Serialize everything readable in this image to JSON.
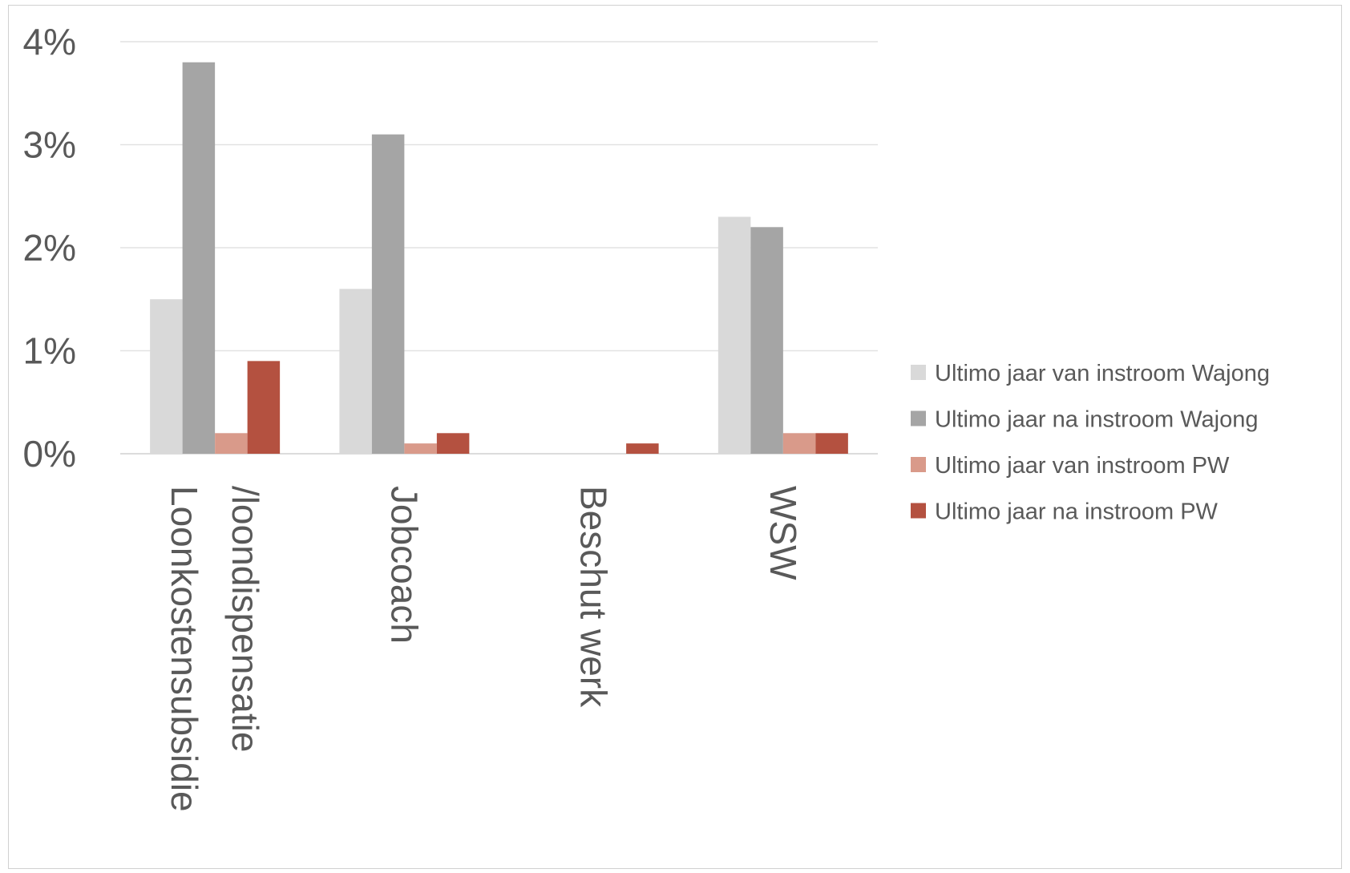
{
  "chart_data": {
    "type": "bar",
    "title": "",
    "xlabel": "",
    "ylabel": "",
    "ylim": [
      0,
      4
    ],
    "yticks": [
      "0%",
      "1%",
      "2%",
      "3%",
      "4%"
    ],
    "grid": true,
    "legend_position": "right",
    "categories": [
      [
        "Loonkostensubsidie",
        "/loondispensatie"
      ],
      [
        "Jobcoach"
      ],
      [
        "Beschut werk"
      ],
      [
        "WSW"
      ]
    ],
    "series": [
      {
        "name": "Ultimo jaar van instroom Wajong",
        "color": "#d9d9d9",
        "values": [
          1.5,
          1.6,
          0,
          2.3
        ]
      },
      {
        "name": "Ultimo jaar na instroom Wajong",
        "color": "#a5a5a5",
        "values": [
          3.8,
          3.1,
          0,
          2.2
        ]
      },
      {
        "name": "Ultimo jaar van instroom PW",
        "color": "#d99a8a",
        "values": [
          0.2,
          0.1,
          0,
          0.2
        ]
      },
      {
        "name": "Ultimo jaar na instroom PW",
        "color": "#b45140",
        "values": [
          0.9,
          0.2,
          0.1,
          0.2
        ]
      }
    ]
  }
}
